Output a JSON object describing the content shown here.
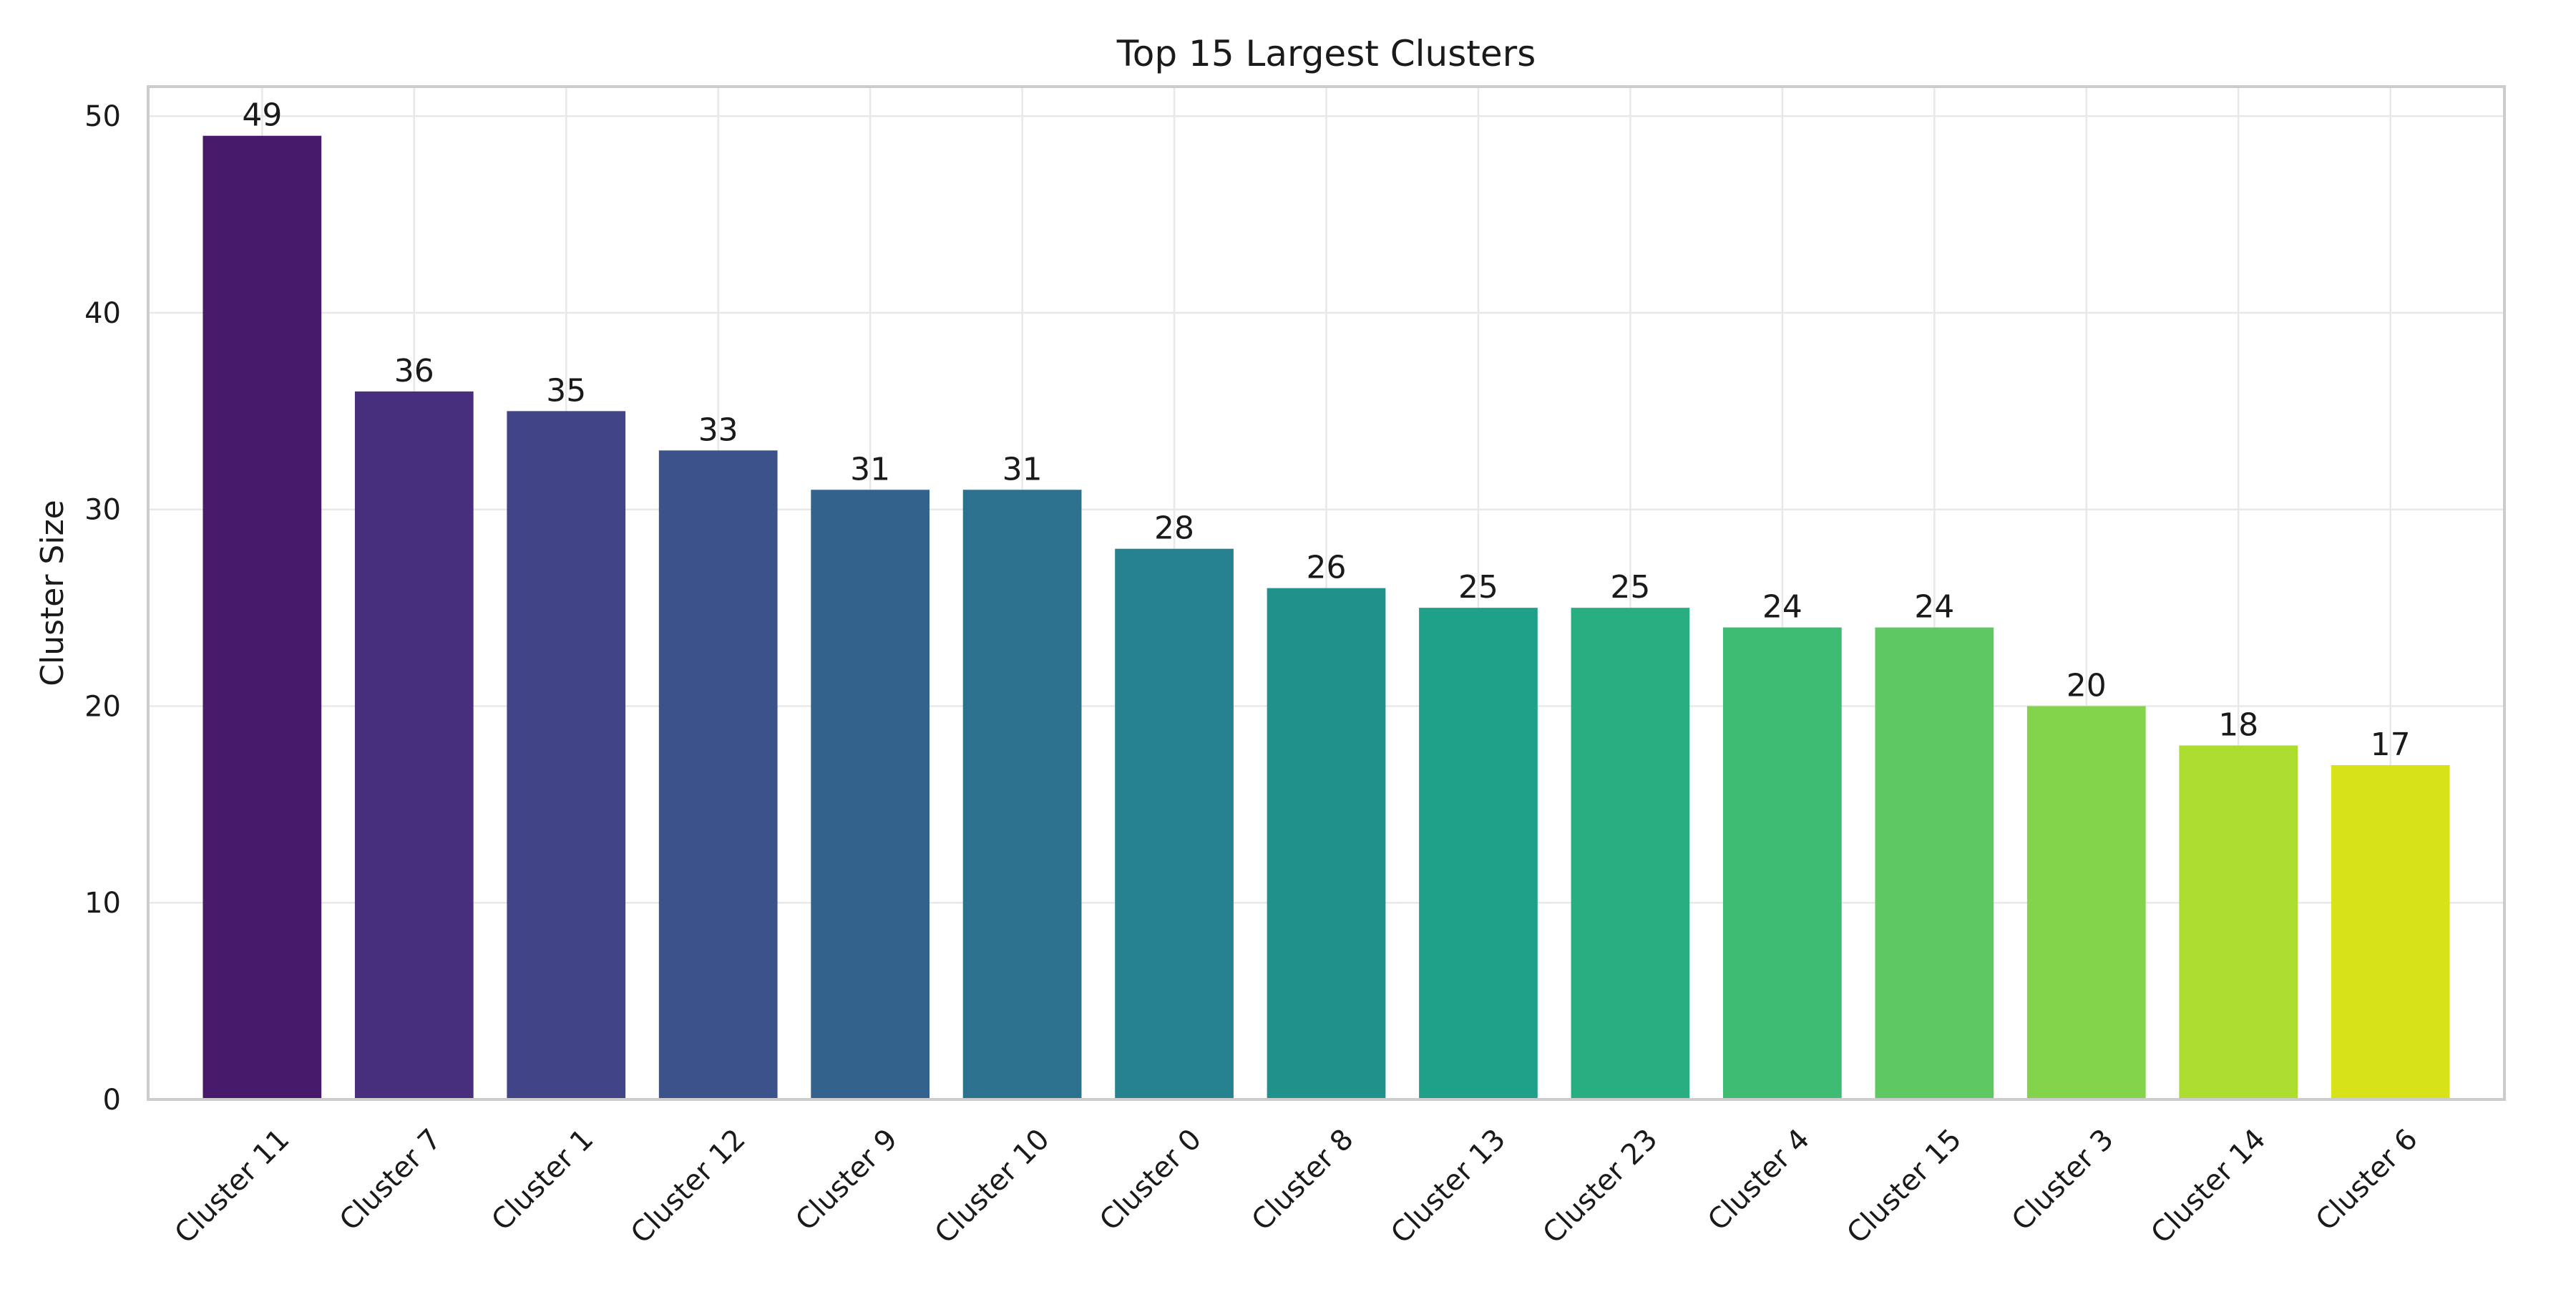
{
  "chart_data": {
    "type": "bar",
    "title": "Top 15 Largest Clusters",
    "xlabel": "",
    "ylabel": "Cluster Size",
    "categories": [
      "Cluster 11",
      "Cluster 7",
      "Cluster 1",
      "Cluster 12",
      "Cluster 9",
      "Cluster 10",
      "Cluster 0",
      "Cluster 8",
      "Cluster 13",
      "Cluster 23",
      "Cluster 4",
      "Cluster 15",
      "Cluster 3",
      "Cluster 14",
      "Cluster 6"
    ],
    "values": [
      49,
      36,
      35,
      33,
      31,
      31,
      28,
      26,
      25,
      25,
      24,
      24,
      20,
      18,
      17
    ],
    "colors": [
      "#481a6c",
      "#472f7d",
      "#414487",
      "#3b528b",
      "#33638d",
      "#2c728e",
      "#26828e",
      "#21918c",
      "#1fa088",
      "#28ae80",
      "#3fbc73",
      "#5ec962",
      "#84d44b",
      "#addc30",
      "#d8e219"
    ],
    "ylim": [
      0,
      51.5
    ],
    "yticks": [
      0,
      10,
      20,
      30,
      40,
      50
    ],
    "grid": true,
    "legend": "none",
    "xtick_rotation": 45
  }
}
